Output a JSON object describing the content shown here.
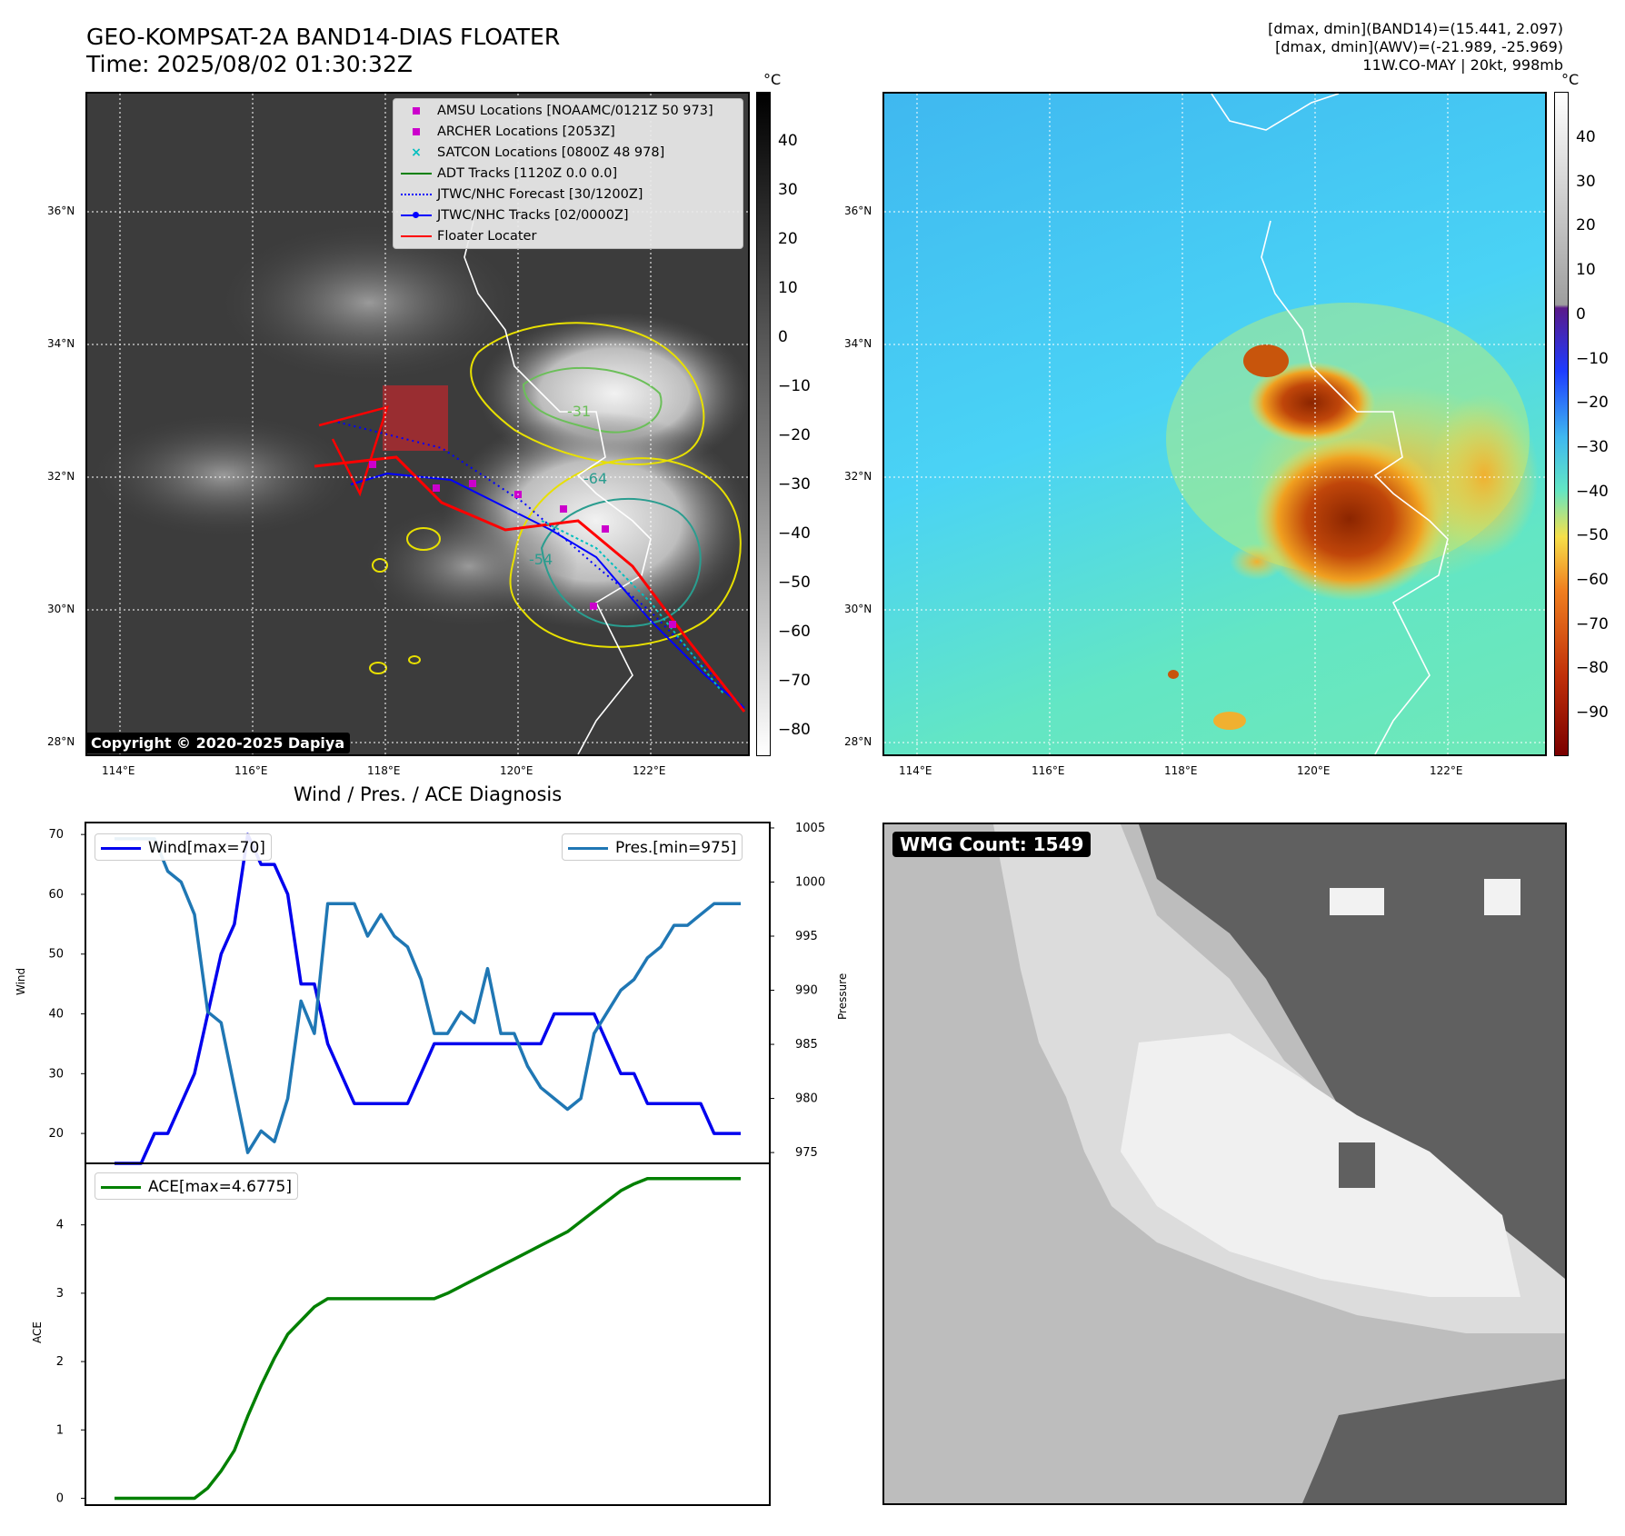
{
  "header": {
    "title_line1": "GEO-KOMPSAT-2A BAND14-DIAS FLOATER",
    "title_line2": "Time: 2025/08/02 01:30:32Z",
    "right_line1": "[dmax, dmin](BAND14)=(15.441, 2.097)",
    "right_line2": "[dmax, dmin](AWV)=(-21.989, -25.969)",
    "right_line3": "11W.CO-MAY | 20kt, 998mb"
  },
  "map": {
    "lat_labels": [
      "36°N",
      "34°N",
      "32°N",
      "30°N",
      "28°N"
    ],
    "lon_labels": [
      "114°E",
      "116°E",
      "118°E",
      "120°E",
      "122°E"
    ],
    "copyright": "Copyright © 2020-2025 Dapiya",
    "contour_labels": [
      "-31",
      "-64",
      "-54"
    ]
  },
  "legend": {
    "items": [
      {
        "label": "AMSU Locations [NOAAMC/0121Z 50 973]",
        "icon": "square-marker",
        "color": "#cc00cc"
      },
      {
        "label": "ARCHER Locations [2053Z]",
        "icon": "square-marker",
        "color": "#cc00cc"
      },
      {
        "label": "SATCON Locations [0800Z 48 978]",
        "icon": "x-marker",
        "color": "#00bfbf"
      },
      {
        "label": "ADT Tracks [1120Z 0.0 0.0]",
        "icon": "solid-line",
        "color": "#008000"
      },
      {
        "label": "JTWC/NHC Forecast [30/1200Z]",
        "icon": "dotted-line",
        "color": "#0000ff"
      },
      {
        "label": "JTWC/NHC Tracks [02/0000Z]",
        "icon": "line-dot",
        "color": "#0000ff"
      },
      {
        "label": "Floater Locater",
        "icon": "solid-line",
        "color": "#ff0000"
      }
    ]
  },
  "colorbar_left": {
    "unit": "°C",
    "ticks": [
      "40",
      "30",
      "20",
      "10",
      "0",
      "−10",
      "−20",
      "−30",
      "−40",
      "−50",
      "−60",
      "−70",
      "−80"
    ]
  },
  "colorbar_right": {
    "unit": "°C",
    "ticks": [
      "40",
      "30",
      "20",
      "10",
      "0",
      "−10",
      "−20",
      "−30",
      "−40",
      "−50",
      "−60",
      "−70",
      "−80",
      "−90"
    ]
  },
  "chart_title": "Wind / Pres. / ACE Diagnosis",
  "wmg_label": "WMG Count: 1549",
  "chart_data": [
    {
      "type": "line",
      "ylabel": "Wind",
      "y2label": "Pressure",
      "ylim": [
        15,
        72
      ],
      "y2lim": [
        974,
        1005.5
      ],
      "yticks": [
        20,
        30,
        40,
        50,
        60,
        70
      ],
      "y2ticks": [
        975,
        980,
        985,
        990,
        995,
        1000,
        1005
      ],
      "series": [
        {
          "name": "Wind[max=70]",
          "axis": "left",
          "color": "#0000ee",
          "values": [
            15,
            15,
            15,
            20,
            20,
            25,
            30,
            40,
            50,
            55,
            70,
            65,
            65,
            60,
            45,
            45,
            35,
            30,
            25,
            25,
            25,
            25,
            25,
            30,
            35,
            35,
            35,
            35,
            35,
            35,
            35,
            35,
            35,
            40,
            40,
            40,
            40,
            35,
            30,
            30,
            25,
            25,
            25,
            25,
            25,
            20,
            20,
            20
          ]
        },
        {
          "name": "Pres.[min=975]",
          "axis": "right",
          "color": "#1f77b4",
          "values": [
            1004,
            1004,
            1004,
            1004,
            1001,
            1000,
            997,
            988,
            987,
            981,
            975,
            977,
            976,
            980,
            989,
            986,
            998,
            998,
            998,
            995,
            997,
            995,
            994,
            991,
            986,
            986,
            988,
            987,
            992,
            986,
            986,
            983,
            981,
            980,
            979,
            980,
            986,
            988,
            990,
            991,
            993,
            994,
            996,
            996,
            997,
            998,
            998,
            998
          ]
        }
      ]
    },
    {
      "type": "line",
      "ylabel": "ACE",
      "ylim": [
        -0.1,
        4.9
      ],
      "yticks": [
        0,
        1,
        2,
        3,
        4
      ],
      "series": [
        {
          "name": "ACE[max=4.6775]",
          "color": "#008000",
          "values": [
            0,
            0,
            0,
            0,
            0,
            0,
            0,
            0.15,
            0.4,
            0.7,
            1.2,
            1.65,
            2.05,
            2.4,
            2.6,
            2.8,
            2.92,
            2.92,
            2.92,
            2.92,
            2.92,
            2.92,
            2.92,
            2.92,
            2.92,
            3.0,
            3.1,
            3.2,
            3.3,
            3.4,
            3.5,
            3.6,
            3.7,
            3.8,
            3.9,
            4.05,
            4.2,
            4.35,
            4.5,
            4.6,
            4.6775,
            4.6775,
            4.6775,
            4.6775,
            4.6775,
            4.6775,
            4.6775,
            4.6775
          ]
        }
      ]
    }
  ]
}
